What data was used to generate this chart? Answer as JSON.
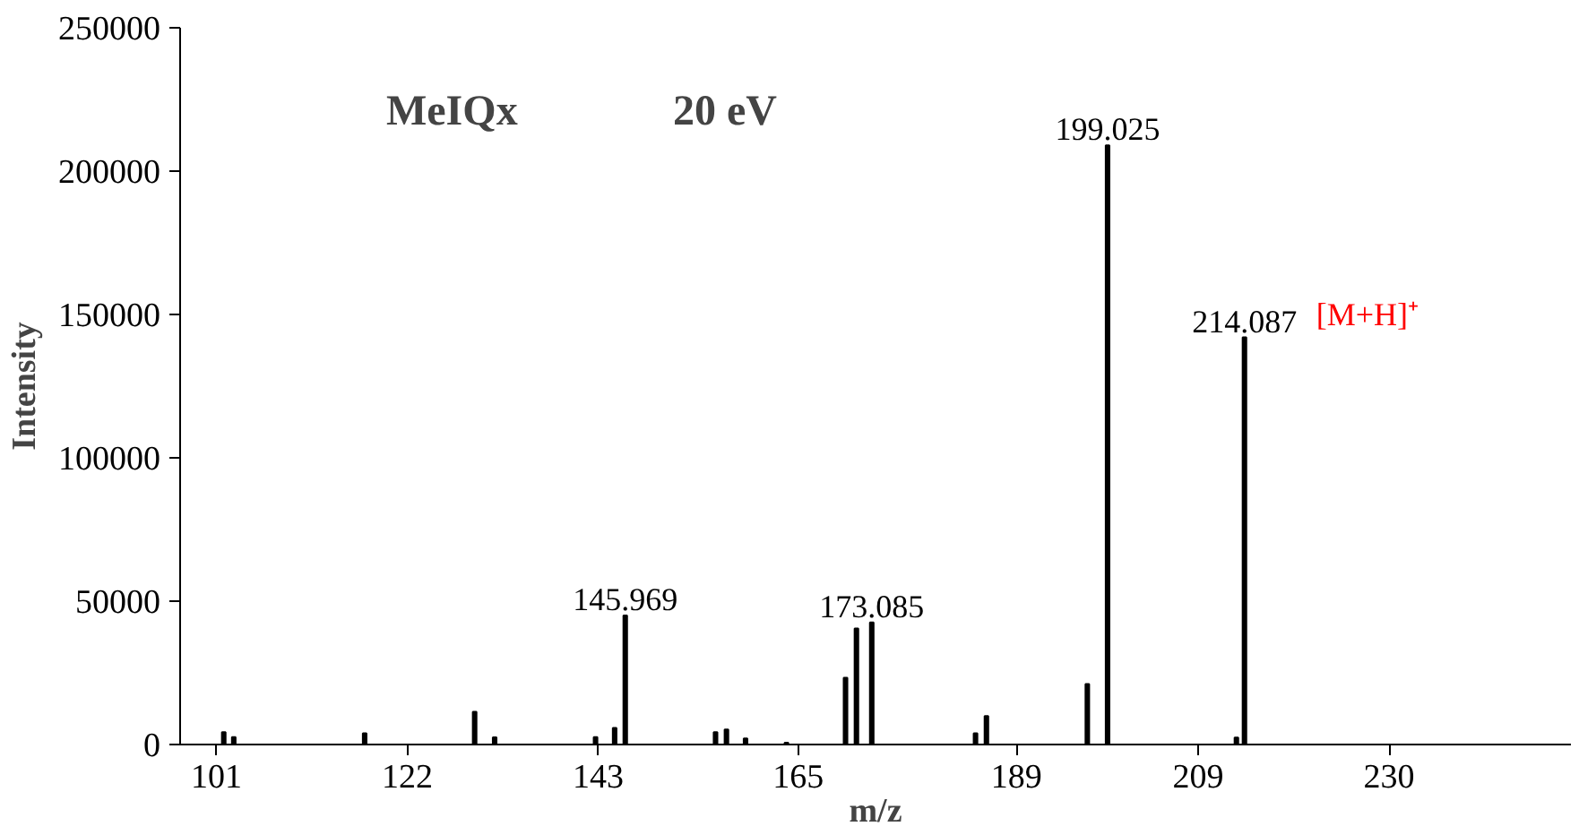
{
  "chart_data": {
    "type": "bar",
    "xlabel": "m/z",
    "ylabel": "Intensity",
    "annotations": [
      "MeIQx",
      "20 eV",
      {
        "text": "145.969",
        "x": 145.969,
        "y": 45000
      },
      {
        "text": "173.085",
        "x": 173.085,
        "y": 42600
      },
      {
        "text": "199.025",
        "x": 199.025,
        "y": 209000
      },
      {
        "text": "214.087",
        "x": 214.087,
        "y": 142000
      },
      {
        "text": "[M+H]⁺",
        "x": 214.087,
        "y": 142000
      }
    ],
    "x": [
      101.8,
      102.9,
      117.3,
      129.4,
      131.6,
      142.7,
      144.8,
      145.969,
      155.9,
      157.1,
      159.2,
      163.7,
      170.2,
      171.4,
      173.085,
      184.5,
      185.7,
      196.8,
      199.025,
      213.2,
      214.087
    ],
    "values": [
      4300,
      2600,
      3900,
      11400,
      2500,
      2600,
      5800,
      45000,
      4300,
      5200,
      2100,
      600,
      23300,
      40500,
      42600,
      3900,
      9900,
      21100,
      209000,
      2400,
      142000
    ],
    "color": "#000000",
    "xlim": [
      97,
      250
    ],
    "xticks": [
      101,
      122,
      143,
      165,
      189,
      209,
      230
    ],
    "ylim": [
      0,
      250000
    ],
    "yticks": [
      0,
      50000,
      100000,
      150000,
      200000,
      250000
    ],
    "grid": false
  }
}
